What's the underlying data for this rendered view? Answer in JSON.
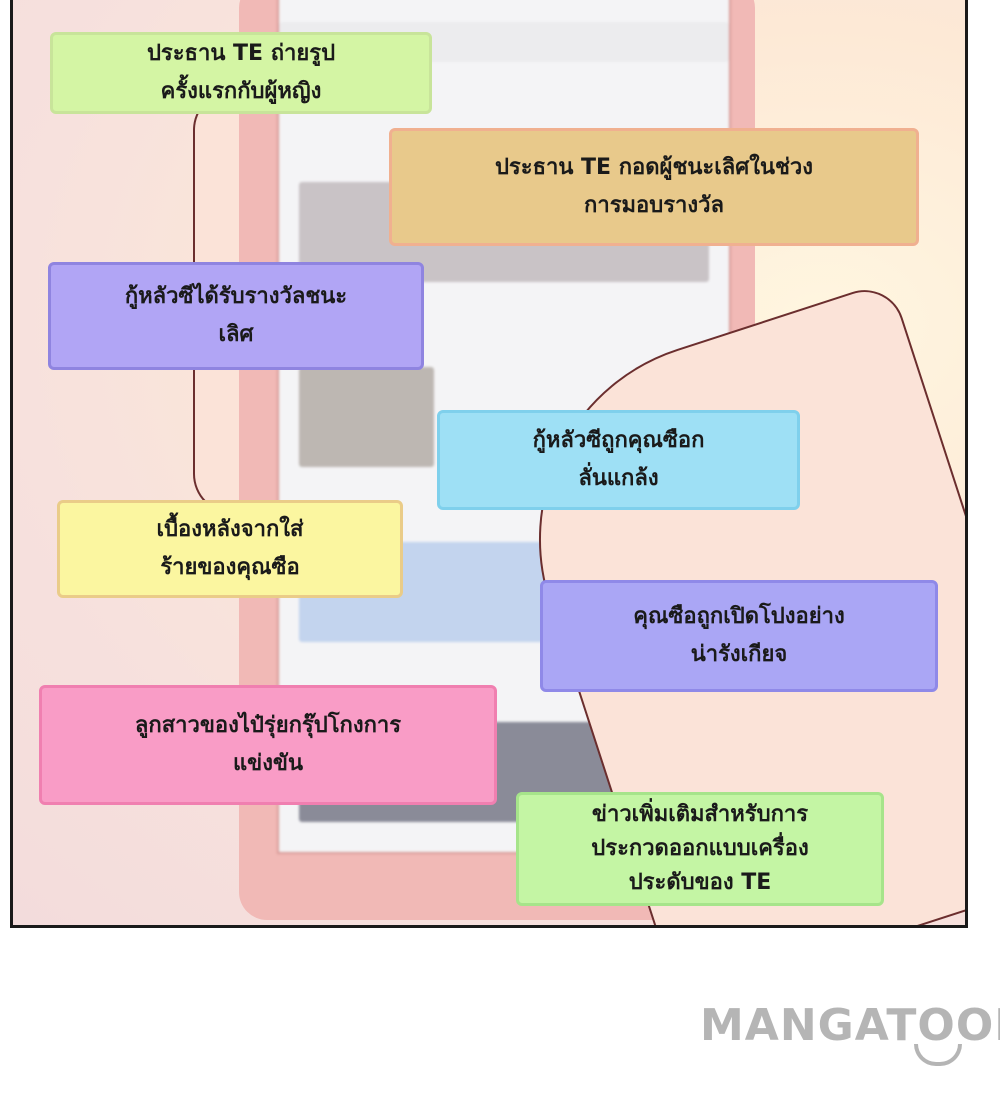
{
  "notes": [
    {
      "lines": [
        "ประธาน TE ถ่ายรูป",
        "ครั้งแรกกับผู้หญิง"
      ],
      "color": "#d4f5a4",
      "border": "#c8e49a"
    },
    {
      "lines": [
        "ประธาน TE กอดผู้ชนะเลิศในช่วง",
        "การมอบรางวัล"
      ],
      "color": "#e8c98b",
      "border": "#f0b090"
    },
    {
      "lines": [
        "กู้หลัวซีได้รับรางวัลชนะ",
        "เลิศ"
      ],
      "color": "#b1a5f5",
      "border": "#8f84e0"
    },
    {
      "lines": [
        "กู้หลัวซีถูกคุณซือก",
        "ลั่นแกล้ง"
      ],
      "color": "#9ee0f5",
      "border": "#7fd0ec"
    },
    {
      "lines": [
        "เบื้องหลังจากใส่",
        "ร้ายของคุณซือ"
      ],
      "color": "#fbf6a0",
      "border": "#eacc88"
    },
    {
      "lines": [
        "คุณซือถูกเปิดโปงอย่าง",
        "น่ารังเกียจ"
      ],
      "color": "#aaa6f5",
      "border": "#8f89e8"
    },
    {
      "lines": [
        "ลูกสาวของไป๋รุ่ยกรุ๊ปโกงการ",
        "แข่งขัน"
      ],
      "color": "#f99cc6",
      "border": "#f07fb0"
    },
    {
      "lines": [
        "ข่าวเพิ่มเติมสำหรับการ",
        "ประกวดออกแบบเครื่อง",
        "ประดับของ TE"
      ],
      "color": "#c4f5a4",
      "border": "#a6e48a"
    }
  ],
  "logo": {
    "text": "MANGATOON",
    "color": "#b5b5b5"
  }
}
